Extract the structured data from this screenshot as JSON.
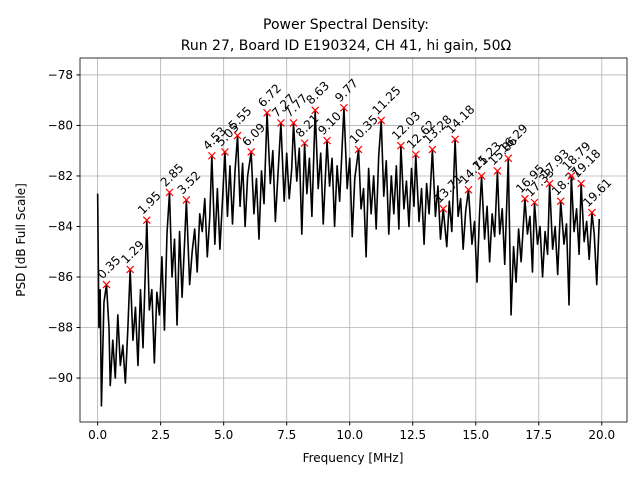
{
  "chart_data": {
    "type": "line",
    "title": "Power Spectral Density:",
    "subtitle": "Run 27, Board ID E190324, CH 41, hi gain, 50Ω",
    "xlabel": "Frequency [MHz]",
    "ylabel": "PSD [dB Full Scale]",
    "xlim": [
      -0.7,
      21.0
    ],
    "ylim": [
      -91.74,
      -77.33
    ],
    "xticks": [
      {
        "value": 0,
        "label": "0.0"
      },
      2.5,
      {
        "value": 5,
        "label": "5.0"
      },
      7.5,
      {
        "value": 10,
        "label": "10.0"
      },
      12.5,
      {
        "value": 15,
        "label": "15.0"
      },
      17.5,
      {
        "value": 20,
        "label": "20.0"
      }
    ],
    "yticks": [
      {
        "value": -90,
        "label": "−90"
      },
      {
        "value": -88,
        "label": "−88"
      },
      {
        "value": -86,
        "label": "−86"
      },
      {
        "value": -84,
        "label": "−84"
      },
      {
        "value": -82,
        "label": "−82"
      },
      {
        "value": -80,
        "label": "−80"
      },
      {
        "value": -78,
        "label": "−78"
      }
    ],
    "grid": true,
    "series": [
      {
        "color": "#000000",
        "x": [
          0.0,
          0.05,
          0.1,
          0.15,
          0.25,
          0.35,
          0.45,
          0.5,
          0.6,
          0.7,
          0.8,
          0.9,
          1.0,
          1.1,
          1.2,
          1.29,
          1.4,
          1.5,
          1.6,
          1.7,
          1.8,
          1.95,
          2.05,
          2.15,
          2.25,
          2.35,
          2.45,
          2.55,
          2.65,
          2.75,
          2.85,
          2.95,
          3.05,
          3.15,
          3.25,
          3.35,
          3.45,
          3.52,
          3.65,
          3.75,
          3.85,
          3.95,
          4.05,
          4.15,
          4.25,
          4.35,
          4.45,
          4.53,
          4.65,
          4.75,
          4.85,
          4.95,
          5.05,
          5.15,
          5.25,
          5.35,
          5.45,
          5.55,
          5.65,
          5.75,
          5.85,
          5.95,
          6.09,
          6.2,
          6.3,
          6.4,
          6.5,
          6.6,
          6.72,
          6.85,
          6.95,
          7.05,
          7.15,
          7.27,
          7.4,
          7.5,
          7.6,
          7.7,
          7.77,
          7.9,
          8.0,
          8.1,
          8.21,
          8.3,
          8.4,
          8.5,
          8.63,
          8.75,
          8.85,
          8.95,
          9.1,
          9.2,
          9.3,
          9.4,
          9.5,
          9.6,
          9.77,
          9.9,
          10.0,
          10.1,
          10.2,
          10.35,
          10.45,
          10.55,
          10.65,
          10.75,
          10.85,
          10.95,
          11.05,
          11.15,
          11.25,
          11.35,
          11.45,
          11.55,
          11.65,
          11.75,
          11.85,
          11.95,
          12.03,
          12.15,
          12.25,
          12.35,
          12.45,
          12.55,
          12.62,
          12.75,
          12.85,
          12.95,
          13.05,
          13.15,
          13.28,
          13.4,
          13.5,
          13.6,
          13.71,
          13.85,
          13.95,
          14.05,
          14.18,
          14.3,
          14.4,
          14.5,
          14.6,
          14.71,
          14.85,
          14.95,
          15.05,
          15.15,
          15.23,
          15.35,
          15.45,
          15.55,
          15.65,
          15.75,
          15.86,
          15.95,
          16.05,
          16.15,
          16.29,
          16.4,
          16.5,
          16.6,
          16.7,
          16.8,
          16.95,
          17.05,
          17.15,
          17.25,
          17.33,
          17.45,
          17.55,
          17.65,
          17.75,
          17.85,
          17.93,
          18.05,
          18.15,
          18.25,
          18.37,
          18.5,
          18.6,
          18.7,
          18.79,
          18.9,
          19.0,
          19.1,
          19.18,
          19.3,
          19.4,
          19.5,
          19.61,
          19.7,
          19.8,
          19.9
        ],
        "values": [
          -82.7,
          -88,
          -86.5,
          -91.1,
          -87,
          -86.3,
          -88,
          -90.3,
          -88.5,
          -90,
          -87.5,
          -89.5,
          -88.7,
          -90.2,
          -88,
          -85.7,
          -88.5,
          -87.2,
          -89.5,
          -86.5,
          -88.8,
          -83.75,
          -87.3,
          -86.5,
          -89.4,
          -86.6,
          -87.5,
          -85.2,
          -88.1,
          -84.3,
          -82.65,
          -86,
          -84.5,
          -87.9,
          -84.2,
          -86.8,
          -84.6,
          -82.95,
          -86.3,
          -85,
          -84.1,
          -85.8,
          -83.5,
          -84.2,
          -82.9,
          -85.2,
          -83.6,
          -81.2,
          -84.7,
          -82.5,
          -84.9,
          -83,
          -81.05,
          -83.6,
          -81.6,
          -83.9,
          -81.8,
          -80.4,
          -83.2,
          -81.5,
          -84,
          -82,
          -81.05,
          -83.5,
          -82.1,
          -84.5,
          -81.8,
          -83.1,
          -79.5,
          -82.3,
          -81,
          -83.8,
          -82,
          -79.9,
          -83,
          -81.1,
          -82.9,
          -81.7,
          -79.9,
          -82.2,
          -80.9,
          -84.3,
          -80.7,
          -82.7,
          -81.3,
          -83.6,
          -79.4,
          -82.5,
          -81.1,
          -83.9,
          -80.6,
          -82.4,
          -81.3,
          -84,
          -81.6,
          -83,
          -79.3,
          -82.5,
          -81.3,
          -84.4,
          -82.1,
          -80.95,
          -83.3,
          -82.5,
          -85.2,
          -81.7,
          -83.5,
          -82,
          -84.1,
          -81.2,
          -79.8,
          -82.8,
          -81.4,
          -84.3,
          -82,
          -83.5,
          -81.6,
          -84.1,
          -80.8,
          -83.3,
          -82.2,
          -84,
          -81.7,
          -83.2,
          -81.15,
          -83.8,
          -82.5,
          -84.7,
          -82.3,
          -83.5,
          -80.95,
          -83.6,
          -82.4,
          -84.5,
          -83.3,
          -84.8,
          -83,
          -84.2,
          -80.55,
          -83.6,
          -82.9,
          -84.9,
          -83.4,
          -82.55,
          -84.7,
          -83.8,
          -86.2,
          -83.5,
          -82,
          -84.5,
          -83.2,
          -85.4,
          -83.5,
          -84.4,
          -81.8,
          -84.3,
          -83.3,
          -85.5,
          -81.3,
          -87.5,
          -84.8,
          -86.2,
          -84.1,
          -85.4,
          -82.9,
          -84.3,
          -83.6,
          -85.8,
          -83.05,
          -84.7,
          -84,
          -86,
          -84.2,
          -85.1,
          -82.3,
          -84.9,
          -84,
          -85.9,
          -83,
          -84.7,
          -83.9,
          -87.1,
          -82,
          -84.2,
          -83.3,
          -85.1,
          -82.3,
          -84.6,
          -83.8,
          -85.3,
          -83.45,
          -84.3,
          -86.3,
          -83.7
        ]
      },
      {
        "color": "#ff0000",
        "marker": "x",
        "x": [
          0.35,
          1.29,
          1.95,
          2.85,
          3.52,
          4.53,
          5.05,
          5.55,
          6.09,
          6.72,
          7.27,
          7.77,
          8.21,
          8.63,
          9.1,
          9.77,
          10.35,
          11.25,
          12.03,
          12.62,
          13.28,
          13.71,
          14.18,
          14.71,
          15.23,
          15.86,
          16.29,
          16.95,
          17.33,
          17.93,
          18.37,
          18.79,
          19.18,
          19.61
        ],
        "values": [
          -86.3,
          -85.7,
          -83.75,
          -82.65,
          -82.95,
          -81.2,
          -81.05,
          -80.4,
          -81.05,
          -79.5,
          -79.9,
          -79.9,
          -80.7,
          -79.4,
          -80.6,
          -79.3,
          -80.95,
          -79.8,
          -80.8,
          -81.15,
          -80.95,
          -83.3,
          -80.55,
          -82.55,
          -82.0,
          -81.8,
          -81.3,
          -82.9,
          -83.05,
          -82.3,
          -83.0,
          -82.0,
          -82.3,
          -83.45
        ],
        "labels": [
          "0.35",
          "1.29",
          "1.95",
          "2.85",
          "3.52",
          "4.53",
          "5.05",
          "5.55",
          "6.09",
          "6.72",
          "7.27",
          "7.77",
          "8.21",
          "8.63",
          "9.10",
          "9.77",
          "10.35",
          "11.25",
          "12.03",
          "12.62",
          "13.28",
          "13.71",
          "14.18",
          "14.71",
          "15.23",
          "15.86",
          "16.29",
          "16.95",
          "17.33",
          "17.93",
          "18.37",
          "18.79",
          "19.18",
          "19.61"
        ]
      }
    ]
  }
}
